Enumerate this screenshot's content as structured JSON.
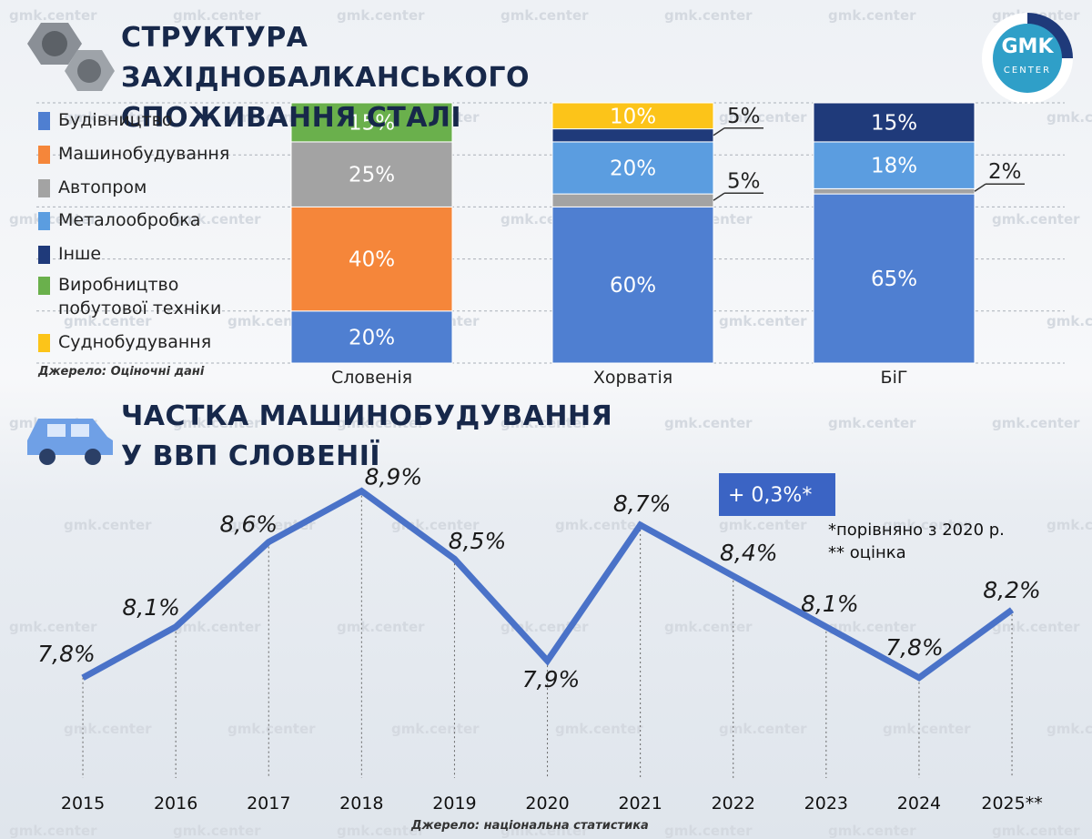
{
  "logo": [
    "GMK",
    "CENTER"
  ],
  "watermark": "gmk.center",
  "chart_data": [
    {
      "type": "stacked-bar",
      "title": "СТРУКТУРА ЗАХІДНОБАЛКАНСЬКОГО СПОЖИВАННЯ СТАЛІ",
      "source": "Джерело: Оціночні дані",
      "categories": [
        "Словенія",
        "Хорватія",
        "БіГ"
      ],
      "ylim": [
        0,
        100
      ],
      "yticks": [
        0,
        20,
        40,
        60,
        80,
        100
      ],
      "grid": true,
      "series": [
        {
          "name": "Будівництво",
          "color": "#4f7fd1",
          "values": [
            20,
            60,
            65
          ],
          "value_labels": [
            "20%",
            "60%",
            "65%"
          ]
        },
        {
          "name": "Машинобудування",
          "color": "#f5863a",
          "values": [
            40,
            null,
            null
          ],
          "value_labels": [
            "40%",
            null,
            null
          ]
        },
        {
          "name": "Автопром",
          "color": "#a3a3a3",
          "values": [
            25,
            5,
            2
          ],
          "value_labels": [
            "25%",
            "5%",
            "2%"
          ]
        },
        {
          "name": "Металообробка",
          "color": "#5b9de0",
          "values": [
            null,
            20,
            18
          ],
          "value_labels": [
            null,
            "20%",
            "18%"
          ]
        },
        {
          "name": "Інше",
          "color": "#1f3a7a",
          "values": [
            null,
            5,
            15
          ],
          "value_labels": [
            null,
            "5%",
            "15%"
          ]
        },
        {
          "name": "Виробництво побутової техніки",
          "color": "#6ab04c",
          "values": [
            15,
            null,
            null
          ],
          "value_labels": [
            "15%",
            null,
            null
          ]
        },
        {
          "name": "Суднобудування",
          "color": "#fcc419",
          "values": [
            null,
            10,
            null
          ],
          "value_labels": [
            null,
            "10%",
            null
          ]
        }
      ]
    },
    {
      "type": "line",
      "title": "ЧАСТКА МАШИНОБУДУВАННЯ У ВВП СЛОВЕНІЇ",
      "source": "Джерело: національна статистика",
      "categories": [
        "2015",
        "2016",
        "2017",
        "2018",
        "2019",
        "2020",
        "2021",
        "2022",
        "2023",
        "2024",
        "2025**"
      ],
      "values": [
        7.8,
        8.1,
        8.6,
        8.9,
        8.5,
        7.9,
        8.7,
        8.4,
        8.1,
        7.8,
        8.2
      ],
      "value_labels": [
        "7,8%",
        "8,1%",
        "8,6%",
        "8,9%",
        "8,5%",
        "7,9%",
        "8,7%",
        "8,4%",
        "8,1%",
        "7,8%",
        "8,2%"
      ],
      "color": "#4a72c8",
      "ylim": [
        7.3,
        9.0
      ],
      "annotations": [
        "+ 0,3%*",
        "*порівняно з 2020 р.",
        "** оцінка"
      ]
    }
  ]
}
